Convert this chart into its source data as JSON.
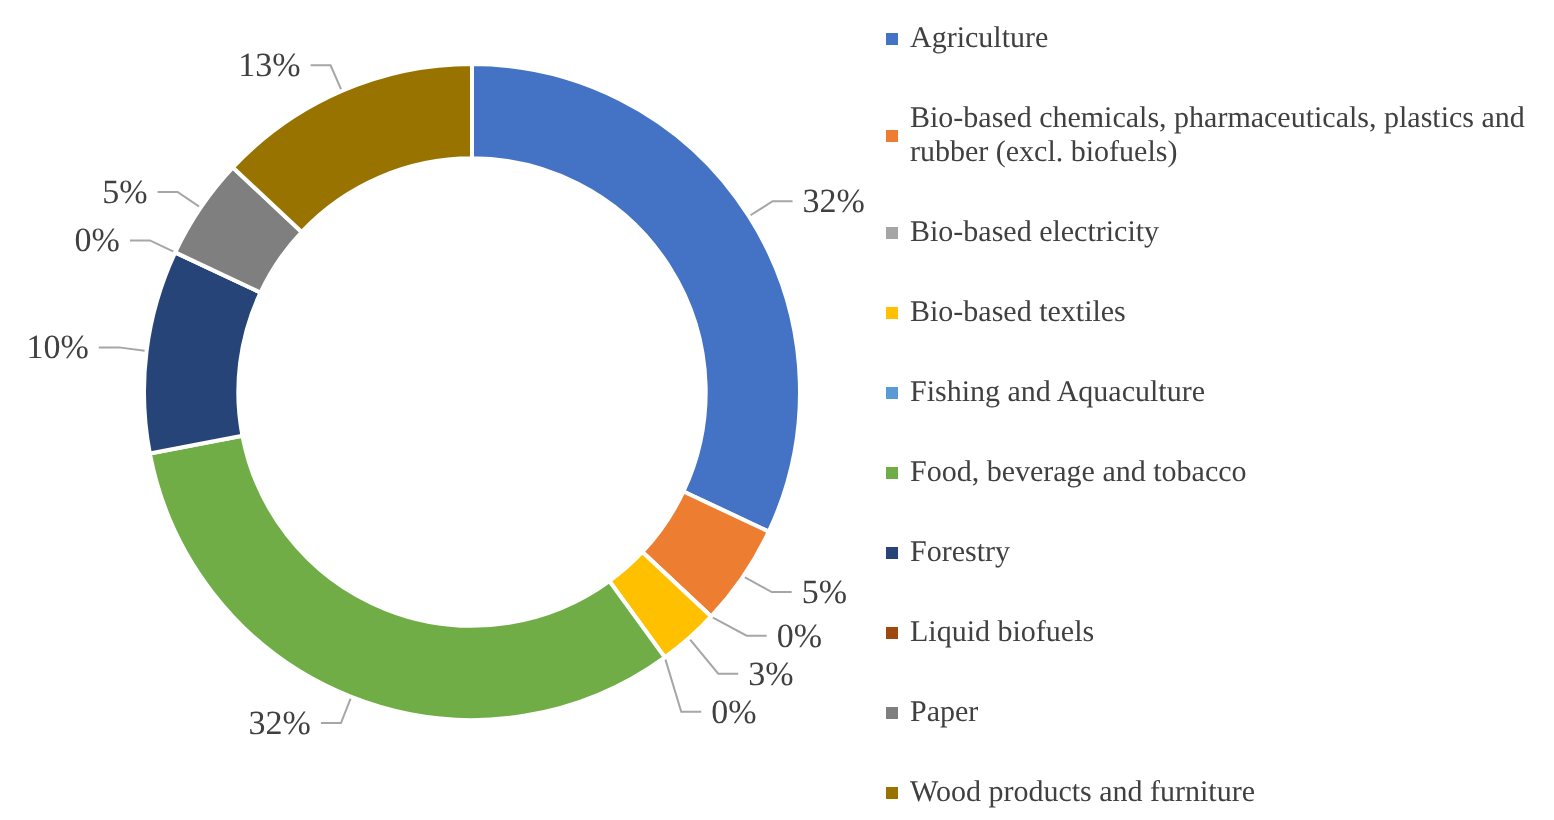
{
  "chart_data": {
    "type": "donut",
    "categories": [
      "Agriculture",
      "Bio-based chemicals, pharmaceuticals, plastics and rubber (excl. biofuels)",
      "Bio-based electricity",
      "Bio-based textiles",
      "Fishing and Aquaculture",
      "Food, beverage and tobacco",
      "Forestry",
      "Liquid biofuels",
      "Paper",
      "Wood products and furniture"
    ],
    "values": [
      32,
      5,
      0,
      3,
      0,
      32,
      10,
      0,
      5,
      13
    ],
    "value_labels": [
      "32%",
      "5%",
      "0%",
      "3%",
      "0%",
      "32%",
      "10%",
      "0%",
      "5%",
      "13%"
    ],
    "colors": [
      "#4472c4",
      "#ed7d31",
      "#a5a5a5",
      "#ffc000",
      "#5b9bd5",
      "#70ad47",
      "#264478",
      "#9e480e",
      "#7f7f7f",
      "#997300"
    ],
    "legend": "right"
  }
}
